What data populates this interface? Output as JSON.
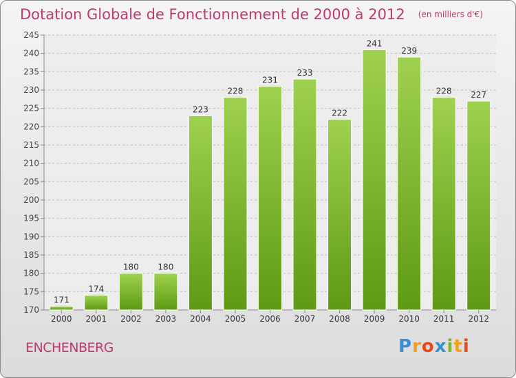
{
  "header": {
    "title": "Dotation Globale de Fonctionnement de 2000 à 2012",
    "unit": "(en milliers d'€)"
  },
  "footer": {
    "commune": "ENCHENBERG",
    "logo": [
      "P",
      "r",
      "o",
      "x",
      "i",
      "t",
      "i"
    ]
  },
  "colors": {
    "title": "#c0386f",
    "bar_top": "#9ed14f",
    "bar_bottom": "#5e9a14",
    "grid": "#bcbcbc"
  },
  "chart_data": {
    "type": "bar",
    "title": "Dotation Globale de Fonctionnement de 2000 à 2012",
    "subtitle": "(en milliers d'€)",
    "xlabel": "",
    "ylabel": "",
    "categories": [
      "2000",
      "2001",
      "2002",
      "2003",
      "2004",
      "2005",
      "2006",
      "2007",
      "2008",
      "2009",
      "2010",
      "2011",
      "2012"
    ],
    "values": [
      171,
      174,
      180,
      180,
      223,
      228,
      231,
      233,
      222,
      241,
      239,
      228,
      227
    ],
    "ylim": [
      170,
      245
    ],
    "yticks": [
      170,
      175,
      180,
      185,
      190,
      195,
      200,
      205,
      210,
      215,
      220,
      225,
      230,
      235,
      240,
      245
    ],
    "grid": true,
    "legend": "none"
  }
}
